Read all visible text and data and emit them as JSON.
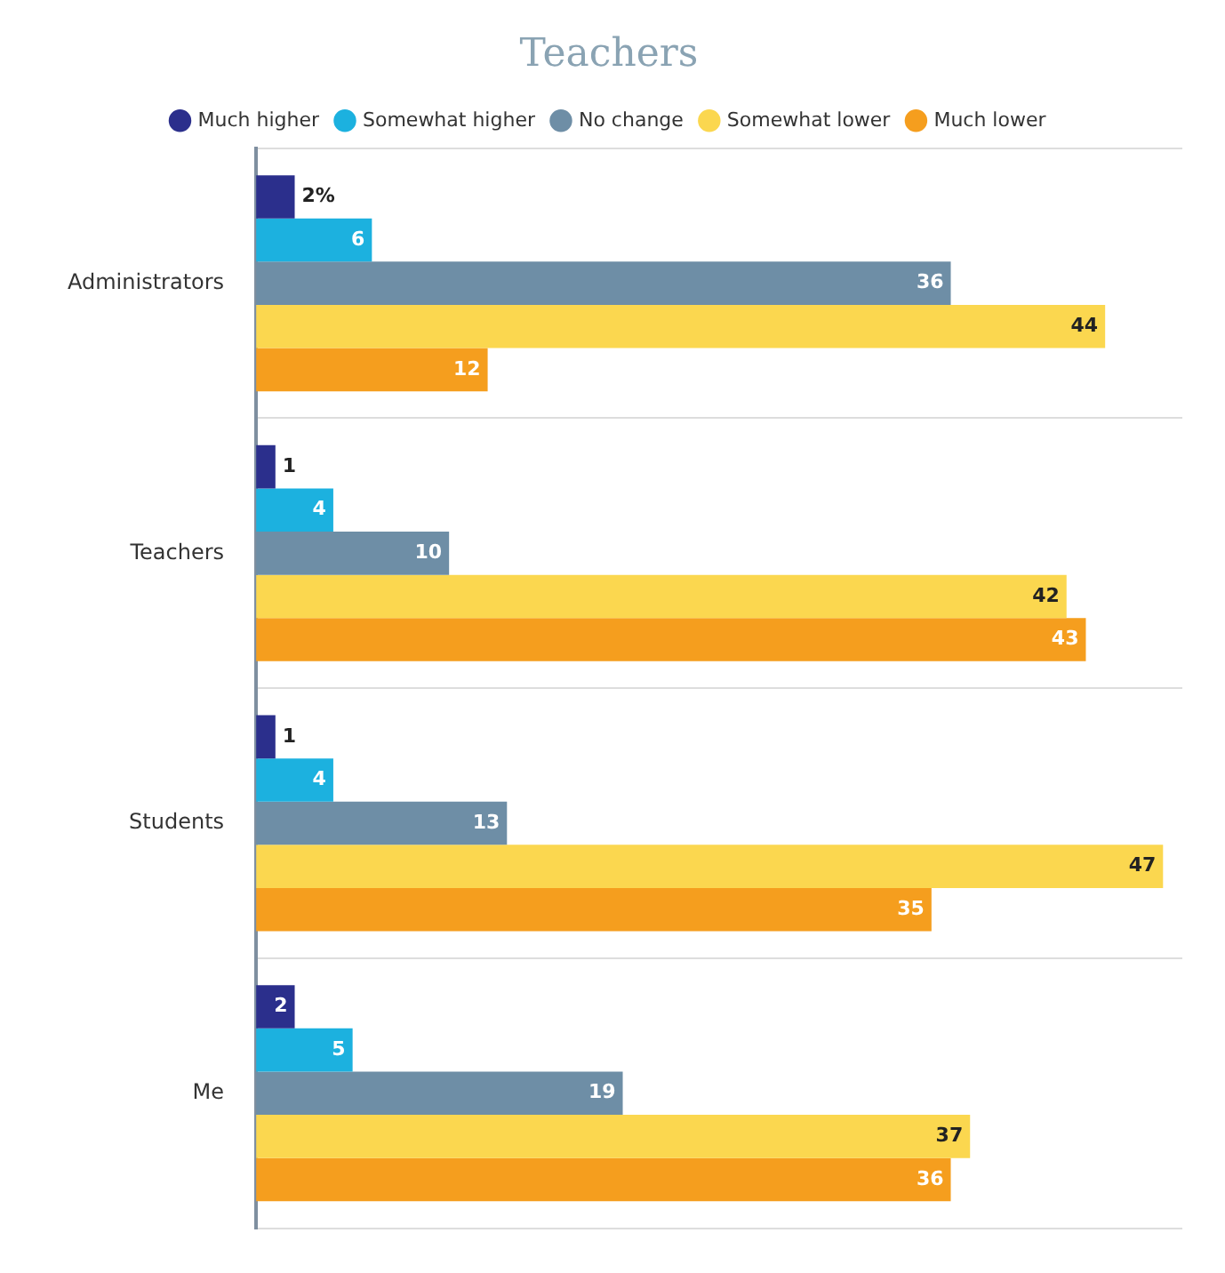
{
  "chart_data": {
    "type": "bar",
    "orientation": "horizontal",
    "title": "Teachers",
    "categories": [
      "Administrators",
      "Teachers",
      "Students",
      "Me"
    ],
    "series": [
      {
        "name": "Much higher",
        "color": "#2b2f8c",
        "values": [
          2,
          1,
          1,
          2
        ],
        "value_labels": [
          "2%",
          "1",
          "1",
          "2"
        ]
      },
      {
        "name": "Somewhat higher",
        "color": "#1cb1df",
        "values": [
          6,
          4,
          4,
          5
        ]
      },
      {
        "name": "No change",
        "color": "#6e8ea6",
        "values": [
          36,
          10,
          13,
          19
        ]
      },
      {
        "name": "Somewhat lower",
        "color": "#fbd74f",
        "values": [
          44,
          42,
          47,
          37
        ]
      },
      {
        "name": "Much lower",
        "color": "#f59e1e",
        "values": [
          12,
          43,
          35,
          36
        ]
      }
    ],
    "xlim": [
      0,
      48
    ],
    "tick_labels": "y",
    "grid": "y",
    "legend": "top",
    "data_labels": true
  }
}
